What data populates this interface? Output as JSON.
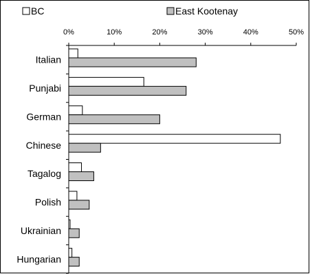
{
  "chart_data": {
    "type": "bar",
    "orientation": "horizontal",
    "categories": [
      "Italian",
      "Punjabi",
      "German",
      "Chinese",
      "Tagalog",
      "Polish",
      "Ukrainian",
      "Hungarian"
    ],
    "series": [
      {
        "name": "BC",
        "values": [
          2,
          16.5,
          3,
          46.5,
          2.8,
          1.8,
          0.3,
          0.7
        ],
        "color": "#ffffff"
      },
      {
        "name": "East Kootenay",
        "values": [
          28,
          25.8,
          20,
          7,
          5.5,
          4.5,
          2.3,
          2.3
        ],
        "color": "#c0c0c0"
      }
    ],
    "xlim": [
      0,
      50
    ],
    "xticks": [
      0,
      10,
      20,
      30,
      40,
      50
    ],
    "xtick_labels": [
      "0%",
      "10%",
      "20%",
      "30%",
      "40%",
      "50%"
    ],
    "legend_position": "top",
    "grid": false,
    "title": "",
    "xlabel": "",
    "ylabel": ""
  }
}
